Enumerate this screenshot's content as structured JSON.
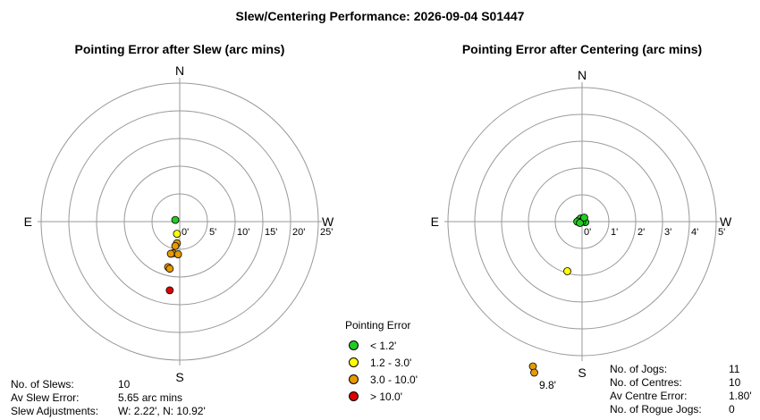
{
  "main_title": "Slew/Centering Performance: 2026-09-04 S01447",
  "chart_data": [
    {
      "type": "scatter",
      "title": "Pointing Error after Slew (arc mins)",
      "compass": {
        "n": "N",
        "s": "S",
        "e": "E",
        "w": "W"
      },
      "rings": [
        5,
        10,
        15,
        20,
        25
      ],
      "ring_labels": [
        "0'",
        "5'",
        "10'",
        "15'",
        "20'",
        "25'"
      ],
      "points": [
        {
          "x": -0.8,
          "y": 0.3,
          "color": "#22cc22"
        },
        {
          "x": -0.5,
          "y": -2.2,
          "color": "#ffff00"
        },
        {
          "x": -0.5,
          "y": -3.9,
          "color": "#e69a00"
        },
        {
          "x": -0.8,
          "y": -4.4,
          "color": "#e69a00"
        },
        {
          "x": -1.2,
          "y": -5.7,
          "color": "#e69a00"
        },
        {
          "x": -0.3,
          "y": -5.9,
          "color": "#e69a00"
        },
        {
          "x": -1.6,
          "y": -5.8,
          "color": "#e69a00"
        },
        {
          "x": -2.1,
          "y": -8.2,
          "color": "#e69a00"
        },
        {
          "x": -1.8,
          "y": -8.5,
          "color": "#e69a00"
        },
        {
          "x": -1.8,
          "y": -12.4,
          "color": "#dd0000"
        }
      ]
    },
    {
      "type": "scatter",
      "title": "Pointing Error after Centering (arc mins)",
      "compass": {
        "n": "N",
        "s": "S",
        "e": "E",
        "w": "W"
      },
      "rings": [
        1,
        2,
        3,
        4,
        5
      ],
      "ring_labels": [
        "0'",
        "1'",
        "2'",
        "3'",
        "4'",
        "5'"
      ],
      "points": [
        {
          "x": -0.12,
          "y": 0.05,
          "color": "#22cc22"
        },
        {
          "x": -0.05,
          "y": 0.12,
          "color": "#22cc22"
        },
        {
          "x": 0.05,
          "y": 0.08,
          "color": "#22cc22"
        },
        {
          "x": 0.12,
          "y": -0.02,
          "color": "#22cc22"
        },
        {
          "x": -0.18,
          "y": 0.0,
          "color": "#22cc22"
        },
        {
          "x": 0.0,
          "y": 0.0,
          "color": "#22cc22"
        },
        {
          "x": -0.08,
          "y": -0.05,
          "color": "#22cc22"
        },
        {
          "x": 0.08,
          "y": 0.15,
          "color": "#22cc22"
        },
        {
          "x": -0.55,
          "y": -1.85,
          "color": "#ffff00"
        }
      ],
      "offscale": {
        "label": "9.8'",
        "color": "#e69a00",
        "count": 2
      }
    }
  ],
  "legend": {
    "title": "Pointing Error",
    "items": [
      {
        "label": "< 1.2'",
        "color": "#22cc22"
      },
      {
        "label": "1.2 - 3.0'",
        "color": "#ffff00"
      },
      {
        "label": "3.0 - 10.0'",
        "color": "#e69a00"
      },
      {
        "label": "> 10.0'",
        "color": "#dd0000"
      }
    ]
  },
  "slew_stats": [
    {
      "label": "No. of Slews:",
      "value": "10"
    },
    {
      "label": "Av Slew Error:",
      "value": "5.65 arc mins"
    },
    {
      "label": "Slew Adjustments:",
      "value": "W: 2.22', N: 10.92'"
    }
  ],
  "centre_stats": [
    {
      "label": "No. of Jogs:",
      "value": "11"
    },
    {
      "label": "No. of Centres:",
      "value": "10"
    },
    {
      "label": "Av Centre Error:",
      "value": "1.80'"
    },
    {
      "label": "No. of Rogue Jogs:",
      "value": "0"
    }
  ]
}
